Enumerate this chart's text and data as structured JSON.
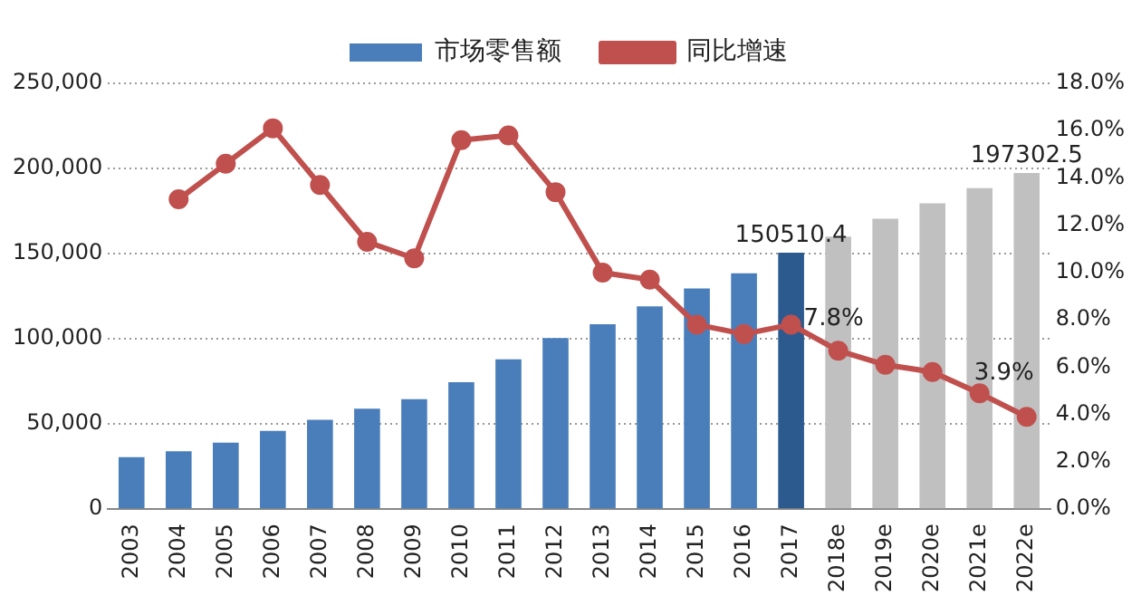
{
  "chart_data": {
    "type": "bar",
    "categories": [
      "2003",
      "2004",
      "2005",
      "2006",
      "2007",
      "2008",
      "2009",
      "2010",
      "2011",
      "2012",
      "2013",
      "2014",
      "2015",
      "2016",
      "2017",
      "2018e",
      "2019e",
      "2020e",
      "2021e",
      "2022e"
    ],
    "series": [
      {
        "name": "市场零售额",
        "colors": [
          "#4a7ebb",
          "#4a7ebb",
          "#4a7ebb",
          "#4a7ebb",
          "#4a7ebb",
          "#4a7ebb",
          "#4a7ebb",
          "#4a7ebb",
          "#4a7ebb",
          "#4a7ebb",
          "#4a7ebb",
          "#4a7ebb",
          "#4a7ebb",
          "#4a7ebb",
          "#2c5a8f",
          "#c0c0c0",
          "#c0c0c0",
          "#c0c0c0",
          "#c0c0c0",
          "#c0c0c0"
        ],
        "values": [
          30500,
          34000,
          39000,
          46000,
          52500,
          59000,
          64500,
          74500,
          88000,
          100500,
          108500,
          119000,
          129500,
          138500,
          150510.4,
          160000,
          170500,
          179500,
          188500,
          197302.5
        ],
        "value_labels": [
          null,
          null,
          null,
          null,
          null,
          null,
          null,
          null,
          null,
          null,
          null,
          null,
          null,
          null,
          "150510.4",
          null,
          null,
          null,
          null,
          "197302.5"
        ]
      },
      {
        "name": "同比增速",
        "type": "line",
        "axis": "y2",
        "color": "#c0504d",
        "values": [
          null,
          13.1,
          14.6,
          16.1,
          13.7,
          11.3,
          10.6,
          15.6,
          15.8,
          13.4,
          10.0,
          9.7,
          7.8,
          7.4,
          7.8,
          6.7,
          6.1,
          5.8,
          4.9,
          3.9
        ],
        "value_labels": [
          null,
          null,
          null,
          null,
          null,
          null,
          null,
          null,
          null,
          null,
          null,
          null,
          null,
          null,
          "7.8%",
          null,
          null,
          null,
          null,
          "3.9%"
        ]
      }
    ],
    "ylim": [
      0,
      250000
    ],
    "yticks": [
      {
        "value": 0,
        "label": "0"
      },
      {
        "value": 50000,
        "label": "50,000"
      },
      {
        "value": 100000,
        "label": "100,000"
      },
      {
        "value": 150000,
        "label": "150,000"
      },
      {
        "value": 200000,
        "label": "200,000"
      },
      {
        "value": 250000,
        "label": "250,000"
      }
    ],
    "y2lim": [
      0,
      18
    ],
    "y2ticks": [
      {
        "value": 0,
        "label": "0.0%"
      },
      {
        "value": 2,
        "label": "2.0%"
      },
      {
        "value": 4,
        "label": "4.0%"
      },
      {
        "value": 6,
        "label": "6.0%"
      },
      {
        "value": 8,
        "label": "8.0%"
      },
      {
        "value": 10,
        "label": "10.0%"
      },
      {
        "value": 12,
        "label": "12.0%"
      },
      {
        "value": 14,
        "label": "14.0%"
      },
      {
        "value": 16,
        "label": "16.0%"
      },
      {
        "value": 18,
        "label": "18.0%"
      }
    ],
    "grid": "y",
    "legend": "top",
    "marker": "circle",
    "line_style": "solid"
  }
}
